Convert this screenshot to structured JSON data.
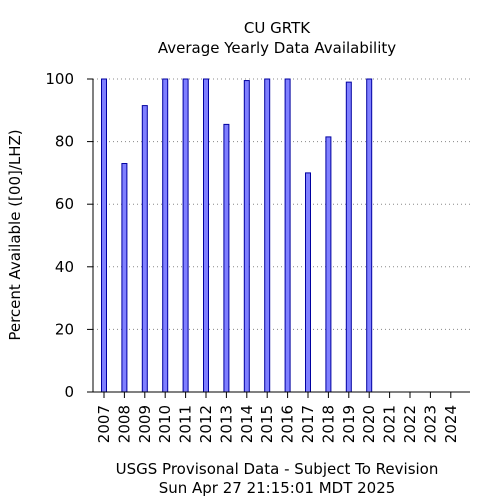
{
  "chart_data": {
    "type": "bar",
    "title": "CU GRTK",
    "subtitle": "Average Yearly Data Availability",
    "xlabel": "",
    "ylabel": "Percent Available ([00]/LHZ)",
    "ylim": [
      0,
      100
    ],
    "yticks": [
      "0",
      "20",
      "40",
      "60",
      "80",
      "100"
    ],
    "grid": true,
    "categories": [
      "2007",
      "2008",
      "2009",
      "2010",
      "2011",
      "2012",
      "2013",
      "2014",
      "2015",
      "2016",
      "2017",
      "2018",
      "2019",
      "2020",
      "2021",
      "2022",
      "2023",
      "2024"
    ],
    "values": [
      100,
      73,
      91.5,
      100,
      100,
      100,
      85.5,
      99.5,
      100,
      100,
      70,
      81.5,
      99,
      100,
      null,
      null,
      null,
      null
    ],
    "bar_color": "#7f7fff",
    "bar_edge_color": "#0000a0",
    "footer_lines": [
      "USGS Provisonal Data - Subject To Revision",
      "Sun Apr 27 21:15:01 MDT 2025"
    ]
  }
}
